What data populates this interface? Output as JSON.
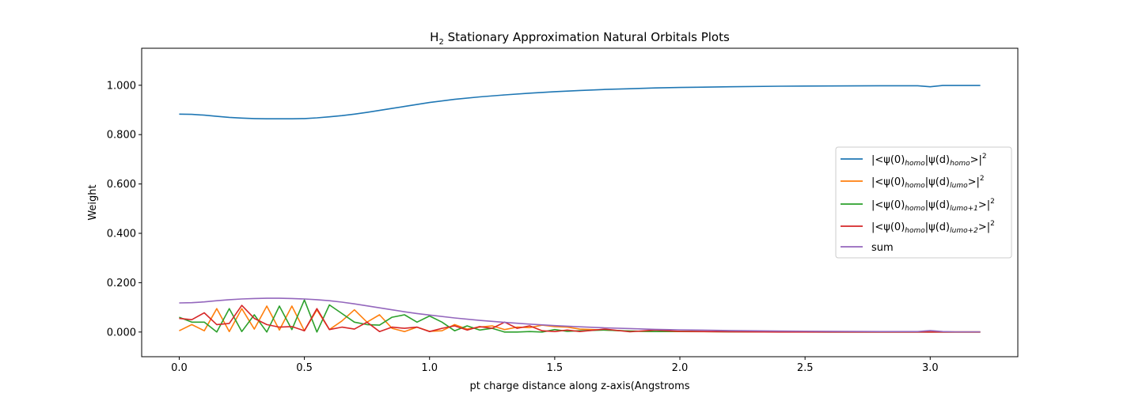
{
  "chart_data": {
    "type": "line",
    "title": "H2 Stationary Approximation Natural Orbitals Plots",
    "title_parts": {
      "pre": "H",
      "sub": "2",
      "post": " Stationary Approximation Natural Orbitals Plots"
    },
    "xlabel": "pt charge distance along z-axis(Angstroms",
    "ylabel": "Weight",
    "xlim": [
      -0.15,
      3.35
    ],
    "ylim": [
      -0.1,
      1.15
    ],
    "xticks": [
      0.0,
      0.5,
      1.0,
      1.5,
      2.0,
      2.5,
      3.0
    ],
    "xtick_labels": [
      "0.0",
      "0.5",
      "1.0",
      "1.5",
      "2.0",
      "2.5",
      "3.0"
    ],
    "yticks": [
      0.0,
      0.2,
      0.4,
      0.6,
      0.8,
      1.0
    ],
    "ytick_labels": [
      "0.000",
      "0.200",
      "0.400",
      "0.600",
      "0.800",
      "1.000"
    ],
    "grid": false,
    "legend_position": "center-right",
    "series": [
      {
        "name": "homo-homo",
        "legend": {
          "pre": "|<ψ(0)",
          "sub1": "homo",
          "mid": "|ψ(d)",
          "sub2": "homo",
          "post": ">|",
          "sup": "2"
        },
        "color": "#1f77b4",
        "x": [
          0.0,
          0.05,
          0.1,
          0.15,
          0.2,
          0.25,
          0.3,
          0.35,
          0.4,
          0.45,
          0.5,
          0.55,
          0.6,
          0.65,
          0.7,
          0.75,
          0.8,
          0.85,
          0.9,
          0.95,
          1.0,
          1.1,
          1.2,
          1.3,
          1.4,
          1.5,
          1.6,
          1.7,
          1.8,
          1.9,
          2.0,
          2.2,
          2.4,
          2.6,
          2.8,
          2.95,
          3.0,
          3.05,
          3.1,
          3.2
        ],
        "y": [
          0.883,
          0.882,
          0.879,
          0.874,
          0.87,
          0.867,
          0.865,
          0.864,
          0.864,
          0.864,
          0.865,
          0.868,
          0.872,
          0.877,
          0.883,
          0.89,
          0.898,
          0.906,
          0.914,
          0.922,
          0.93,
          0.943,
          0.953,
          0.961,
          0.968,
          0.974,
          0.979,
          0.983,
          0.986,
          0.989,
          0.991,
          0.994,
          0.996,
          0.997,
          0.998,
          0.998,
          0.994,
          0.999,
          0.999,
          0.999
        ]
      },
      {
        "name": "homo-lumo",
        "legend": {
          "pre": "|<ψ(0)",
          "sub1": "homo",
          "mid": "|ψ(d)",
          "sub2": "lumo",
          "post": ">|",
          "sup": "2"
        },
        "color": "#ff7f0e",
        "x": [
          0.0,
          0.05,
          0.1,
          0.15,
          0.2,
          0.25,
          0.3,
          0.35,
          0.4,
          0.45,
          0.5,
          0.55,
          0.6,
          0.65,
          0.7,
          0.75,
          0.8,
          0.85,
          0.9,
          0.95,
          1.0,
          1.05,
          1.1,
          1.15,
          1.2,
          1.25,
          1.3,
          1.35,
          1.4,
          1.45,
          1.5,
          1.55,
          1.6,
          1.65,
          1.7,
          1.75,
          1.8,
          1.85,
          1.9,
          2.0,
          2.2,
          2.4,
          2.6,
          2.8,
          3.0,
          3.2
        ],
        "y": [
          0.005,
          0.03,
          0.005,
          0.095,
          0.002,
          0.095,
          0.012,
          0.105,
          0.008,
          0.105,
          0.005,
          0.09,
          0.01,
          0.045,
          0.09,
          0.04,
          0.07,
          0.015,
          0.002,
          0.02,
          0.003,
          0.005,
          0.03,
          0.012,
          0.02,
          0.025,
          0.01,
          0.02,
          0.018,
          0.028,
          0.022,
          0.02,
          0.012,
          0.01,
          0.008,
          0.006,
          0.004,
          0.003,
          0.002,
          0.002,
          0.001,
          0.001,
          0.001,
          0.001,
          0.001,
          0.001
        ]
      },
      {
        "name": "homo-lumo+1",
        "legend": {
          "pre": "|<ψ(0)",
          "sub1": "homo",
          "mid": "|ψ(d)",
          "sub2": "lumo+1",
          "post": ">|",
          "sup": "2"
        },
        "color": "#2ca02c",
        "x": [
          0.0,
          0.05,
          0.1,
          0.15,
          0.2,
          0.25,
          0.3,
          0.35,
          0.4,
          0.45,
          0.5,
          0.55,
          0.6,
          0.65,
          0.7,
          0.75,
          0.8,
          0.85,
          0.9,
          0.95,
          1.0,
          1.05,
          1.1,
          1.15,
          1.2,
          1.25,
          1.3,
          1.35,
          1.4,
          1.45,
          1.5,
          1.55,
          1.6,
          1.7,
          1.8,
          1.9,
          2.0,
          2.2,
          2.4,
          2.6,
          2.8,
          3.0,
          3.2
        ],
        "y": [
          0.06,
          0.04,
          0.04,
          0.0,
          0.095,
          0.002,
          0.07,
          0.0,
          0.105,
          0.01,
          0.13,
          0.0,
          0.11,
          0.075,
          0.04,
          0.03,
          0.028,
          0.06,
          0.07,
          0.04,
          0.065,
          0.04,
          0.005,
          0.025,
          0.008,
          0.015,
          0.0,
          0.0,
          0.002,
          0.0,
          0.01,
          0.003,
          0.005,
          0.008,
          0.004,
          0.002,
          0.003,
          0.001,
          0.001,
          0.0,
          0.0,
          0.0,
          0.0
        ]
      },
      {
        "name": "homo-lumo+2",
        "legend": {
          "pre": "|<ψ(0)",
          "sub1": "homo",
          "mid": "|ψ(d)",
          "sub2": "lumo+2",
          "post": ">|",
          "sup": "2"
        },
        "color": "#d62728",
        "x": [
          0.0,
          0.05,
          0.1,
          0.15,
          0.2,
          0.25,
          0.3,
          0.35,
          0.4,
          0.45,
          0.5,
          0.55,
          0.6,
          0.65,
          0.7,
          0.75,
          0.8,
          0.85,
          0.9,
          0.95,
          1.0,
          1.05,
          1.1,
          1.15,
          1.2,
          1.25,
          1.3,
          1.35,
          1.4,
          1.45,
          1.5,
          1.55,
          1.6,
          1.7,
          1.8,
          1.9,
          2.0,
          2.2,
          2.4,
          2.6,
          2.8,
          3.0,
          3.2
        ],
        "y": [
          0.055,
          0.05,
          0.078,
          0.03,
          0.035,
          0.108,
          0.055,
          0.03,
          0.02,
          0.022,
          0.005,
          0.095,
          0.01,
          0.02,
          0.012,
          0.04,
          0.002,
          0.02,
          0.015,
          0.02,
          0.002,
          0.015,
          0.025,
          0.008,
          0.022,
          0.015,
          0.04,
          0.015,
          0.025,
          0.005,
          0.002,
          0.008,
          0.002,
          0.012,
          0.001,
          0.008,
          0.003,
          0.001,
          0.0,
          0.0,
          0.0,
          0.0,
          0.0
        ]
      },
      {
        "name": "sum",
        "legend": {
          "pre": "sum",
          "sub1": "",
          "mid": "",
          "sub2": "",
          "post": "",
          "sup": ""
        },
        "color": "#9467bd",
        "x": [
          0.0,
          0.05,
          0.1,
          0.15,
          0.2,
          0.25,
          0.3,
          0.35,
          0.4,
          0.45,
          0.5,
          0.55,
          0.6,
          0.65,
          0.7,
          0.75,
          0.8,
          0.85,
          0.9,
          0.95,
          1.0,
          1.1,
          1.2,
          1.3,
          1.4,
          1.5,
          1.6,
          1.7,
          1.8,
          1.9,
          2.0,
          2.2,
          2.4,
          2.6,
          2.8,
          2.95,
          3.0,
          3.05,
          3.1,
          3.2
        ],
        "y": [
          0.118,
          0.119,
          0.122,
          0.127,
          0.131,
          0.134,
          0.136,
          0.137,
          0.137,
          0.136,
          0.134,
          0.131,
          0.127,
          0.121,
          0.114,
          0.106,
          0.098,
          0.09,
          0.082,
          0.075,
          0.069,
          0.057,
          0.047,
          0.039,
          0.032,
          0.026,
          0.021,
          0.017,
          0.014,
          0.011,
          0.009,
          0.006,
          0.004,
          0.003,
          0.002,
          0.002,
          0.006,
          0.002,
          0.001,
          0.001
        ]
      }
    ]
  }
}
